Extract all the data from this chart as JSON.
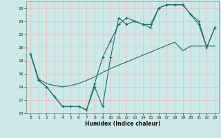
{
  "xlabel": "Humidex (Indice chaleur)",
  "xlim": [
    -0.5,
    23.5
  ],
  "ylim": [
    10,
    27
  ],
  "yticks": [
    10,
    12,
    14,
    16,
    18,
    20,
    22,
    24,
    26
  ],
  "xticks": [
    0,
    1,
    2,
    3,
    4,
    5,
    6,
    7,
    8,
    9,
    10,
    11,
    12,
    13,
    14,
    15,
    16,
    17,
    18,
    19,
    20,
    21,
    22,
    23
  ],
  "bg_color": "#cce8e8",
  "line_color": "#1a6b6b",
  "grid_color": "#e8b8b8",
  "curve1_x": [
    0,
    1,
    2,
    3,
    4,
    5,
    6,
    7,
    8,
    9,
    10,
    11,
    12,
    13,
    14,
    15,
    16,
    17,
    18,
    19,
    20,
    21,
    22,
    23
  ],
  "curve1_y": [
    19,
    15,
    14,
    12.5,
    11,
    11,
    11,
    10.5,
    14,
    11,
    18.5,
    24.5,
    23.5,
    24,
    23.5,
    23,
    26,
    26.5,
    26.5,
    26.5,
    25,
    24,
    20,
    23
  ],
  "curve2_x": [
    0,
    1,
    2,
    3,
    4,
    5,
    6,
    7,
    8,
    9,
    10,
    11,
    12,
    13,
    14,
    15,
    16,
    17,
    18,
    19,
    20,
    21,
    22,
    23
  ],
  "curve2_y": [
    19,
    15,
    14,
    12.5,
    11,
    11,
    11,
    10.5,
    14.5,
    18.5,
    21,
    23.5,
    24.5,
    24,
    23.5,
    23.5,
    26,
    26.5,
    26.5,
    26.5,
    25,
    23.5,
    20,
    23
  ],
  "curve3_x": [
    0,
    1,
    2,
    3,
    4,
    5,
    6,
    7,
    8,
    9,
    10,
    11,
    12,
    13,
    14,
    15,
    16,
    17,
    18,
    19,
    20,
    21,
    22,
    23
  ],
  "curve3_y": [
    19,
    15.2,
    14.5,
    14.2,
    14.0,
    14.2,
    14.5,
    15.0,
    15.5,
    16.2,
    16.8,
    17.3,
    17.8,
    18.3,
    18.8,
    19.3,
    19.8,
    20.3,
    20.8,
    19.5,
    20.2,
    20.2,
    20.2,
    20.2
  ]
}
